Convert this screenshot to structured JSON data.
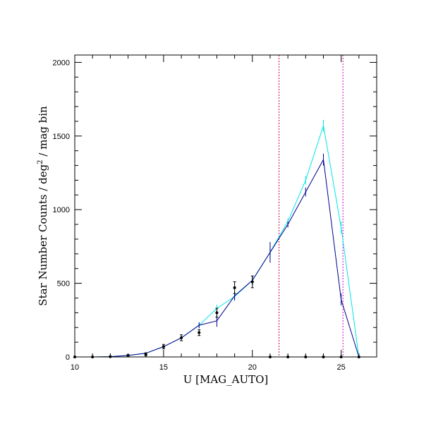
{
  "chart_data": {
    "type": "line",
    "xlabel": "U [MAG_AUTO]",
    "ylabel_main": "Star Number Counts / deg",
    "ylabel_sup": "2",
    "ylabel_tail": " / mag bin",
    "xlim": [
      10,
      27
    ],
    "ylim": [
      0,
      2050
    ],
    "x_ticks": [
      10,
      15,
      20,
      25
    ],
    "y_ticks": [
      0,
      500,
      1000,
      1500,
      2000
    ],
    "x_tick_labels": [
      "10",
      "15",
      "20",
      "25"
    ],
    "y_tick_labels": [
      "0",
      "500",
      "1000",
      "1500",
      "2000"
    ],
    "x_minor_step": 1,
    "y_minor_step": 100,
    "vlines": [
      {
        "x": 21.5,
        "color": "#cc0033"
      },
      {
        "x": 25.1,
        "color": "#cc00cc"
      }
    ],
    "series": [
      {
        "color": "#00e5e5",
        "style": "line",
        "x": [
          11,
          12,
          13,
          14,
          15,
          16,
          17,
          18,
          19,
          20,
          21,
          22,
          23,
          24,
          25,
          26
        ],
        "y": [
          0,
          2,
          10,
          25,
          70,
          130,
          215,
          330,
          410,
          520,
          710,
          920,
          1200,
          1570,
          880,
          0
        ],
        "err": [
          0,
          2,
          3,
          5,
          8,
          12,
          20,
          25,
          30,
          30,
          40,
          20,
          30,
          40,
          40,
          0
        ]
      },
      {
        "color": "#00008b",
        "style": "line",
        "x": [
          11,
          12,
          13,
          14,
          15,
          16,
          17,
          18,
          19,
          20,
          21,
          22,
          23,
          24,
          25,
          26
        ],
        "y": [
          0,
          2,
          10,
          25,
          70,
          130,
          215,
          245,
          415,
          520,
          710,
          900,
          1120,
          1340,
          390,
          0
        ],
        "err": [
          0,
          2,
          3,
          5,
          8,
          12,
          20,
          40,
          30,
          30,
          70,
          20,
          30,
          40,
          40,
          0
        ]
      },
      {
        "color": "#000000",
        "style": "points",
        "x": [
          10,
          11,
          12,
          13,
          14,
          15,
          16,
          17,
          18,
          19,
          20,
          21,
          22,
          23,
          24,
          25,
          26
        ],
        "y": [
          0,
          0,
          2,
          10,
          18,
          70,
          130,
          165,
          300,
          470,
          510,
          0,
          0,
          0,
          0,
          0,
          0
        ],
        "err": [
          0,
          0,
          2,
          5,
          10,
          15,
          20,
          20,
          30,
          40,
          40,
          0,
          0,
          0,
          0,
          0,
          0
        ]
      }
    ]
  }
}
